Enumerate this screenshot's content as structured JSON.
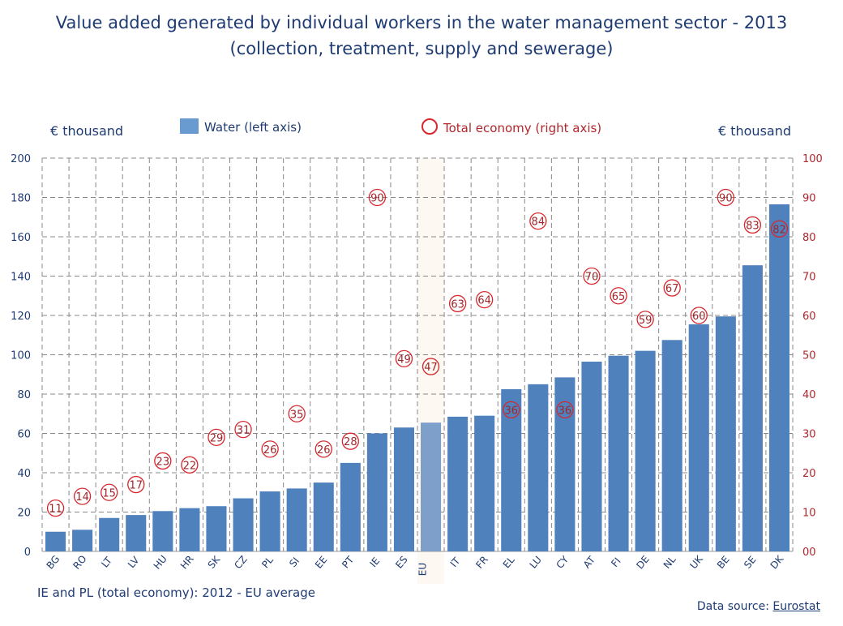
{
  "chart_data": {
    "type": "bar",
    "title": "Value added generated by individual workers in the water management sector - 2013",
    "subtitle": "(collection, treatment, supply and sewerage)",
    "left_unit": "€ thousand",
    "right_unit": "€ thousand",
    "categories": [
      "BG",
      "RO",
      "LT",
      "LV",
      "HU",
      "HR",
      "SK",
      "CZ",
      "PL",
      "SI",
      "EE",
      "PT",
      "IE",
      "ES",
      "EU",
      "IT",
      "FR",
      "EL",
      "LU",
      "CY",
      "AT",
      "FI",
      "DE",
      "NL",
      "UK",
      "BE",
      "SE",
      "DK"
    ],
    "highlight_category": "EU",
    "series": [
      {
        "name": "Water (left axis)",
        "type": "bar",
        "axis": "left",
        "color": "#4f81bd",
        "values": [
          10,
          11,
          17,
          18.5,
          20.5,
          22,
          23,
          27,
          30.5,
          32,
          35,
          45,
          60,
          63,
          65.5,
          68.5,
          69,
          82.5,
          85,
          88.5,
          96.5,
          99.5,
          102,
          107.5,
          115.5,
          119.5,
          145.5,
          176.5
        ]
      },
      {
        "name": "Total economy (right axis)",
        "type": "scatter",
        "axis": "right",
        "color": "#c0282e",
        "values": [
          11,
          14,
          15,
          17,
          23,
          22,
          29,
          31,
          26,
          35,
          26,
          28,
          90,
          49,
          47,
          63,
          64,
          36,
          84,
          36,
          70,
          65,
          59,
          67,
          60,
          90,
          83,
          82
        ]
      }
    ],
    "left_axis": {
      "range": [
        0,
        200
      ],
      "ticks": [
        "0",
        "20",
        "40",
        "60",
        "80",
        "100",
        "120",
        "140",
        "160",
        "180",
        "200"
      ]
    },
    "right_axis": {
      "range": [
        0,
        100
      ],
      "ticks": [
        "00",
        "10",
        "20",
        "30",
        "40",
        "50",
        "60",
        "70",
        "80",
        "90",
        "100"
      ]
    },
    "eu_bar_color": "#7f9fcb",
    "grid": true,
    "legend_placement": "top",
    "note": "IE and PL (total economy): 2012 - EU average",
    "source_label": "Data source: ",
    "source_link": "Eurostat"
  }
}
